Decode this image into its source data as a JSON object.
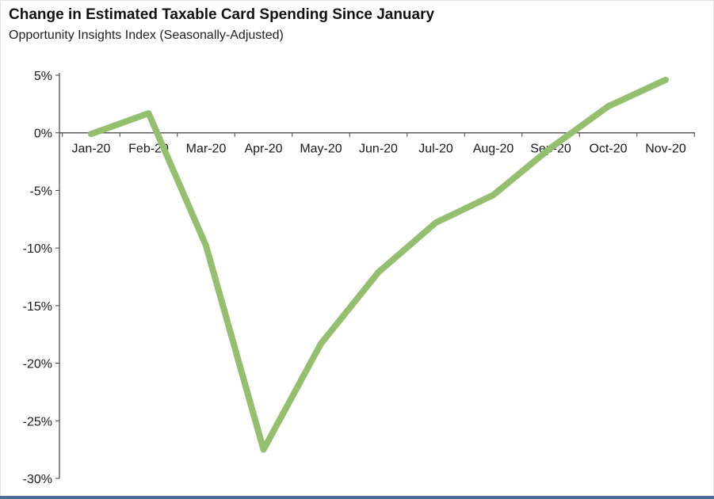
{
  "chart_data": {
    "type": "line",
    "title": "Change in Estimated Taxable Card Spending Since January",
    "subtitle": "Opportunity Insights Index (Seasonally-Adjusted)",
    "categories": [
      "Jan-20",
      "Feb-20",
      "Mar-20",
      "Apr-20",
      "May-20",
      "Jun-20",
      "Jul-20",
      "Aug-20",
      "Sep-20",
      "Oct-20",
      "Nov-20"
    ],
    "series": [
      {
        "name": "Opportunity Insights Index (Seasonally-Adjusted)",
        "values": [
          -0.1,
          1.7,
          -9.8,
          -27.5,
          -18.3,
          -12.1,
          -7.8,
          -5.4,
          -1.3,
          2.3,
          4.6
        ]
      }
    ],
    "ylim": [
      -30,
      5
    ],
    "ytick_step": 5,
    "ytick_labels": [
      "5%",
      "0%",
      "-5%",
      "-10%",
      "-15%",
      "-20%",
      "-25%",
      "-30%"
    ],
    "xlabel": "",
    "ylabel": "",
    "grid": false,
    "legend": "none",
    "style": {
      "line_color": "#93bf6f",
      "axis_color": "#3f3f3f",
      "text_color": "#1a1a1a",
      "bottom_border_color": "#4a6d9b",
      "line_width": 8
    }
  }
}
